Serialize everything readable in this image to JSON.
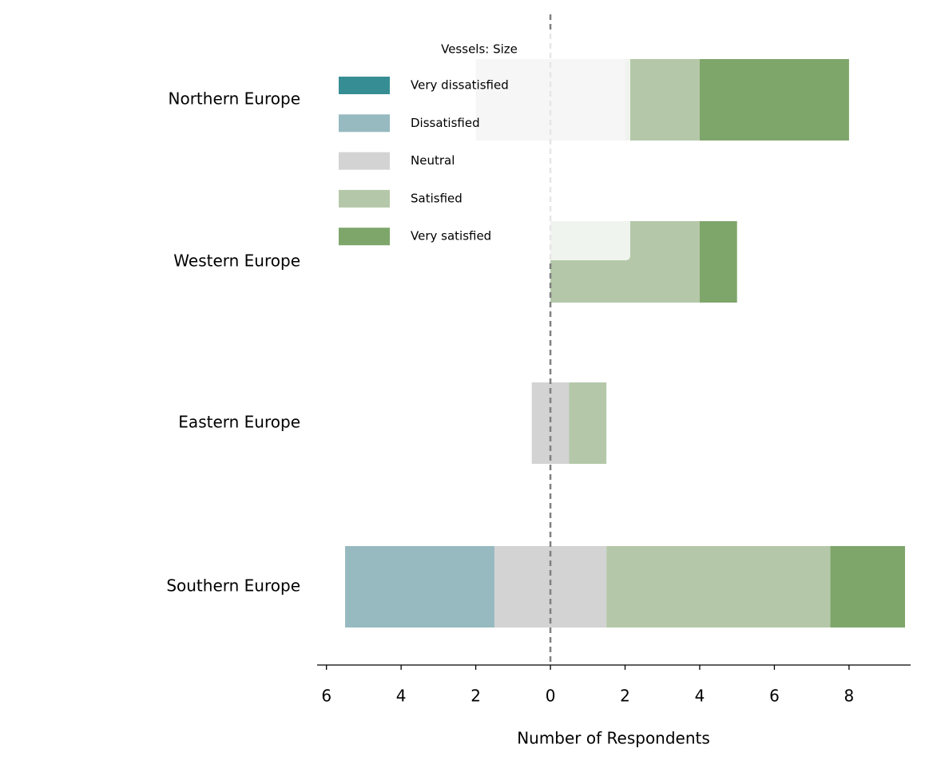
{
  "chart_data": {
    "type": "diverging-bar",
    "categories": [
      "Northern Europe",
      "Western Europe",
      "Eastern Europe",
      "Southern Europe"
    ],
    "series": [
      {
        "name": "Very dissatisfied",
        "color": "#368e94",
        "values": [
          0,
          0,
          0,
          0
        ]
      },
      {
        "name": "Dissatisfied",
        "color": "#96bac0",
        "values": [
          0,
          0,
          0,
          4
        ]
      },
      {
        "name": "Neutral",
        "color": "#d3d3d3",
        "values": [
          4,
          0,
          1,
          3
        ]
      },
      {
        "name": "Satisfied",
        "color": "#b4c8a9",
        "values": [
          2,
          4,
          1,
          6
        ]
      },
      {
        "name": "Very satisfied",
        "color": "#7ea66b",
        "values": [
          4,
          1,
          0,
          2
        ]
      }
    ],
    "legend_title": "Vessels: Size",
    "xlabel": "Number of Respondents",
    "xlim": [
      -6.25,
      9.65
    ],
    "xticks": [
      {
        "value": -6,
        "label": "6"
      },
      {
        "value": -4,
        "label": "4"
      },
      {
        "value": -2,
        "label": "2"
      },
      0,
      2,
      4,
      6,
      8
    ]
  }
}
